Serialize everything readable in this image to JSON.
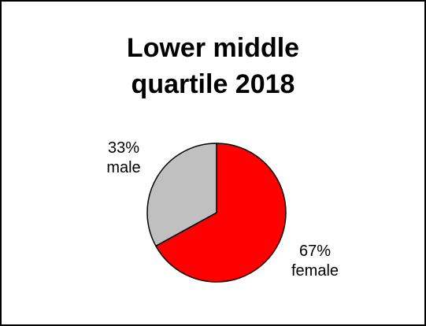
{
  "chart_data": {
    "type": "pie",
    "title_lines": [
      "Lower middle",
      "quartile 2018"
    ],
    "slices": [
      {
        "label": "female",
        "value": 67,
        "percent_text": "67%",
        "color": "#ff0000"
      },
      {
        "label": "male",
        "value": 33,
        "percent_text": "33%",
        "color": "#c0c0c0"
      }
    ],
    "start_angle_deg": 0,
    "direction": "clockwise",
    "legend": "none"
  }
}
